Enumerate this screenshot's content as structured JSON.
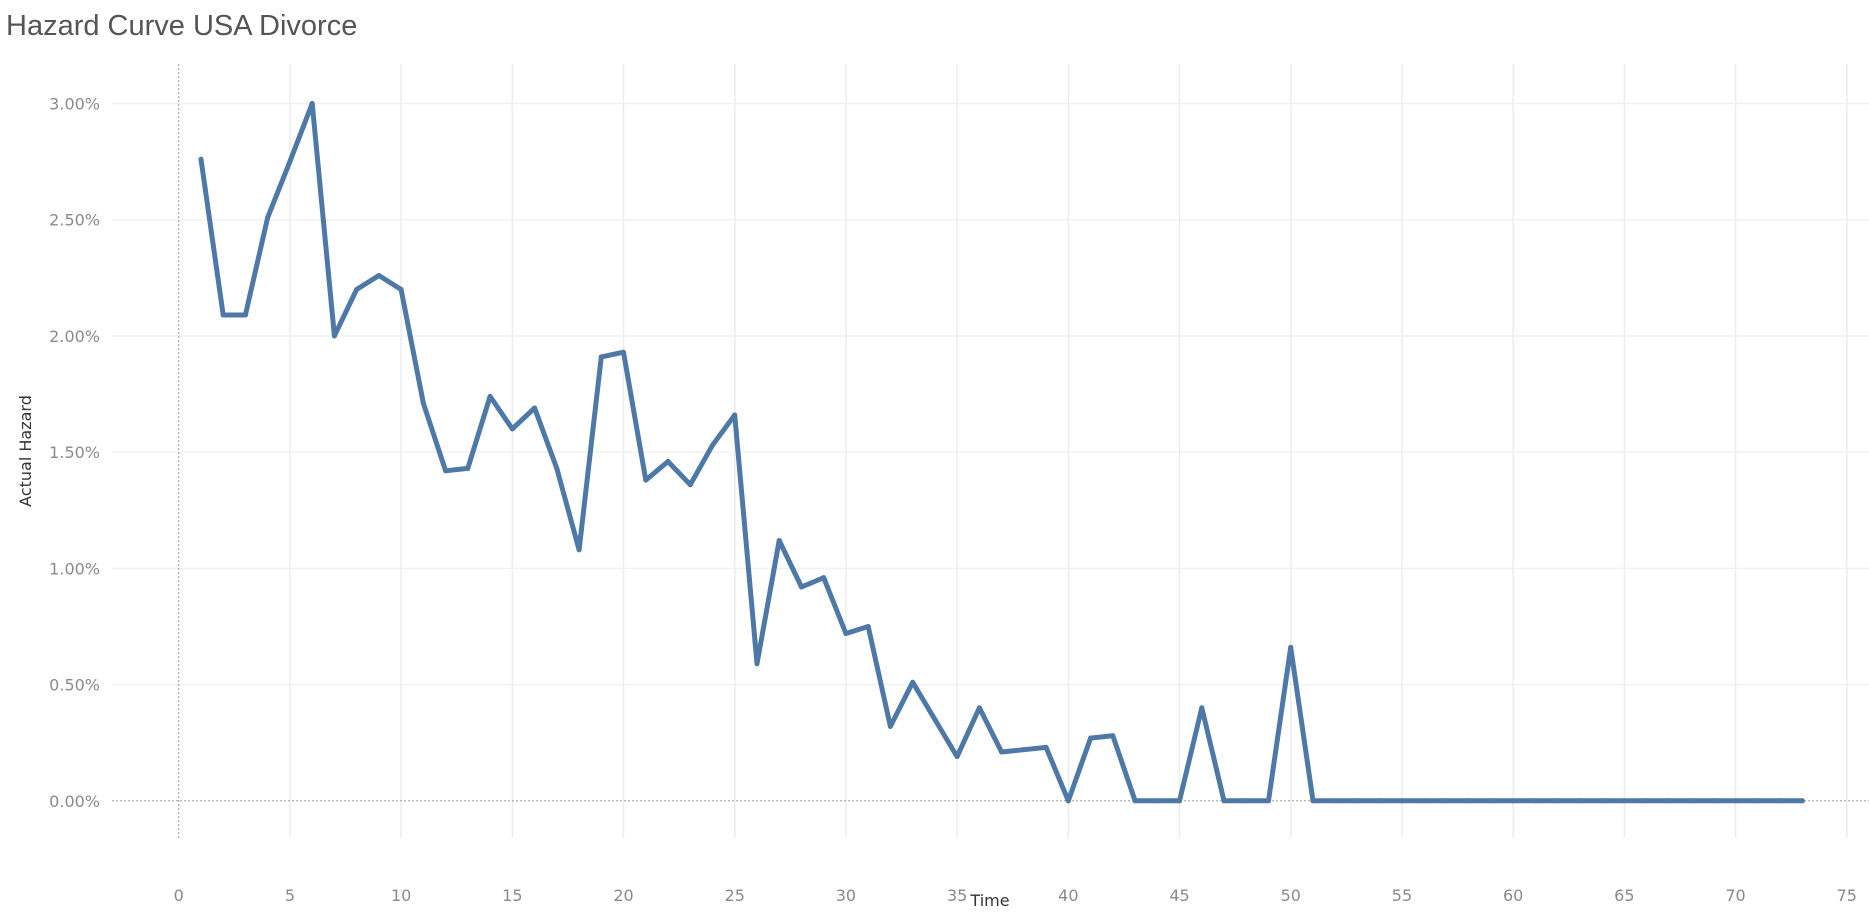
{
  "chart_data": {
    "type": "line",
    "title": "Hazard Curve USA Divorce",
    "xlabel": "Time",
    "ylabel": "Actual Hazard",
    "xlim": [
      -3,
      76
    ],
    "ylim": [
      -0.0016,
      0.0317
    ],
    "x_ticks": [
      0,
      5,
      10,
      15,
      20,
      25,
      30,
      35,
      40,
      45,
      50,
      55,
      60,
      65,
      70,
      75
    ],
    "y_ticks": [
      0,
      0.005,
      0.01,
      0.015,
      0.02,
      0.025,
      0.03
    ],
    "y_tick_labels": [
      "0.00%",
      "0.50%",
      "1.00%",
      "1.50%",
      "2.00%",
      "2.50%",
      "3.00%"
    ],
    "grid": true,
    "legend": "none",
    "series": [
      {
        "color": "#4e79a7",
        "x": [
          1,
          2,
          3,
          4,
          5,
          6,
          7,
          8,
          9,
          10,
          11,
          12,
          13,
          14,
          15,
          16,
          17,
          18,
          19,
          20,
          21,
          22,
          23,
          24,
          25,
          26,
          27,
          28,
          29,
          30,
          31,
          32,
          33,
          34,
          35,
          36,
          37,
          38,
          39,
          40,
          41,
          42,
          43,
          44,
          45,
          46,
          47,
          48,
          49,
          50,
          51,
          52,
          53,
          54,
          55,
          56,
          57,
          58,
          59,
          60,
          61,
          62,
          63,
          64,
          65,
          66,
          67,
          68,
          69,
          70,
          71,
          72,
          73
        ],
        "values": [
          0.0276,
          0.0209,
          0.0209,
          0.0251,
          0.0275,
          0.03,
          0.02,
          0.022,
          0.0226,
          0.022,
          0.0171,
          0.0142,
          0.0143,
          0.0174,
          0.016,
          0.0169,
          0.0143,
          0.0108,
          0.0191,
          0.0193,
          0.0138,
          0.0146,
          0.0136,
          0.0153,
          0.0166,
          0.0059,
          0.0112,
          0.0092,
          0.0096,
          0.0072,
          0.0075,
          0.0032,
          0.0051,
          0.0035,
          0.0019,
          0.004,
          0.0021,
          0.0022,
          0.0023,
          0.0,
          0.0027,
          0.0028,
          0.0,
          0.0,
          0.0,
          0.004,
          0.0,
          0.0,
          0.0,
          0.0066,
          0.0,
          0.0,
          0.0,
          0.0,
          0.0,
          0.0,
          0.0,
          0.0,
          0.0,
          0.0,
          0.0,
          0.0,
          0.0,
          0.0,
          0.0,
          0.0,
          0.0,
          0.0,
          0.0,
          0.0,
          0.0,
          0.0,
          0.0
        ]
      }
    ]
  }
}
